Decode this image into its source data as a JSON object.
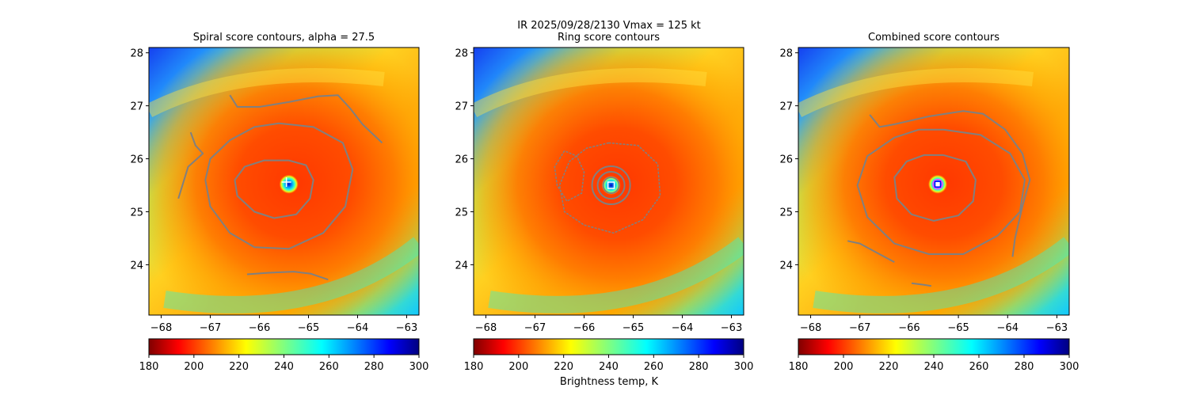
{
  "figure": {
    "suptitle_line1": "IR  2025/09/28/2130    Vmax = 125 kt",
    "colorbar_label": "Brightness temp, K"
  },
  "chart_data": [
    {
      "type": "heatmap",
      "title": "Spiral score contours, alpha = 27.5",
      "xlim": [
        -68.25,
        -62.75
      ],
      "ylim": [
        23.05,
        28.1
      ],
      "xticks": [
        -68,
        -67,
        -66,
        -65,
        -64,
        -63
      ],
      "yticks": [
        24,
        25,
        26,
        27,
        28
      ],
      "xtick_labels": [
        "−68",
        "−67",
        "−66",
        "−65",
        "−64",
        "−63"
      ],
      "ytick_labels": [
        "24",
        "25",
        "26",
        "27",
        "28"
      ],
      "colorbar": {
        "min": 180,
        "max": 300,
        "ticks": [
          "180",
          "200",
          "220",
          "240",
          "260",
          "280",
          "300"
        ],
        "colormap": "jet_r"
      },
      "center": {
        "lon": -65.4,
        "lat": 25.52
      },
      "marker": {
        "shape": "plus",
        "color": "#ffffff",
        "lon": -65.45,
        "lat": 25.56
      },
      "contours": [
        {
          "level": "inner",
          "points": [
            [
              -65.4,
              25.97
            ],
            [
              -65.05,
              25.88
            ],
            [
              -64.9,
              25.6
            ],
            [
              -64.97,
              25.25
            ],
            [
              -65.25,
              24.95
            ],
            [
              -65.7,
              24.88
            ],
            [
              -66.1,
              25.0
            ],
            [
              -66.45,
              25.3
            ],
            [
              -66.5,
              25.6
            ],
            [
              -66.3,
              25.85
            ],
            [
              -65.9,
              25.97
            ],
            [
              -65.4,
              25.97
            ]
          ]
        },
        {
          "level": "middle",
          "points": [
            [
              -65.6,
              26.67
            ],
            [
              -64.9,
              26.6
            ],
            [
              -64.3,
              26.3
            ],
            [
              -64.1,
              25.8
            ],
            [
              -64.25,
              25.1
            ],
            [
              -64.7,
              24.6
            ],
            [
              -65.4,
              24.3
            ],
            [
              -66.1,
              24.33
            ],
            [
              -66.6,
              24.6
            ],
            [
              -67.0,
              25.1
            ],
            [
              -67.1,
              25.6
            ],
            [
              -67.0,
              26.0
            ],
            [
              -66.6,
              26.35
            ],
            [
              -66.1,
              26.6
            ],
            [
              -65.6,
              26.67
            ]
          ]
        },
        {
          "level": "outer-arc",
          "points": [
            [
              -66.6,
              27.2
            ],
            [
              -66.45,
              26.98
            ],
            [
              -66.0,
              26.98
            ],
            [
              -65.4,
              27.07
            ],
            [
              -64.8,
              27.18
            ],
            [
              -64.4,
              27.2
            ],
            [
              -64.15,
              26.95
            ],
            [
              -63.9,
              26.65
            ],
            [
              -63.5,
              26.3
            ]
          ]
        },
        {
          "level": "west-fragment",
          "points": [
            [
              -67.4,
              26.5
            ],
            [
              -67.3,
              26.25
            ],
            [
              -67.15,
              26.1
            ],
            [
              -67.45,
              25.85
            ],
            [
              -67.55,
              25.55
            ],
            [
              -67.65,
              25.25
            ]
          ]
        },
        {
          "level": "south-fragment",
          "points": [
            [
              -66.25,
              23.82
            ],
            [
              -65.8,
              23.85
            ],
            [
              -65.3,
              23.87
            ],
            [
              -64.95,
              23.83
            ],
            [
              -64.6,
              23.72
            ]
          ]
        }
      ]
    },
    {
      "type": "heatmap",
      "title": "Ring score contours",
      "xlim": [
        -68.25,
        -62.75
      ],
      "ylim": [
        23.05,
        28.1
      ],
      "xticks": [
        -68,
        -67,
        -66,
        -65,
        -64,
        -63
      ],
      "yticks": [
        24,
        25,
        26,
        27,
        28
      ],
      "xtick_labels": [
        "−68",
        "−67",
        "−66",
        "−65",
        "−64",
        "−63"
      ],
      "ytick_labels": [
        "24",
        "25",
        "26",
        "27",
        "28"
      ],
      "colorbar": {
        "min": 180,
        "max": 300,
        "ticks": [
          "180",
          "200",
          "220",
          "240",
          "260",
          "280",
          "300"
        ],
        "colormap": "jet_r"
      },
      "center": {
        "lon": -65.45,
        "lat": 25.5
      },
      "marker": {
        "shape": "square",
        "color": "#ffffff",
        "lon": -65.45,
        "lat": 25.5
      },
      "contours": [
        {
          "level": "irregular",
          "jagged": true,
          "points": [
            [
              -65.5,
              26.3
            ],
            [
              -64.9,
              26.25
            ],
            [
              -64.5,
              25.9
            ],
            [
              -64.45,
              25.3
            ],
            [
              -64.8,
              24.85
            ],
            [
              -65.4,
              24.6
            ],
            [
              -66.0,
              24.75
            ],
            [
              -66.4,
              25.0
            ],
            [
              -66.5,
              25.5
            ],
            [
              -66.3,
              25.95
            ],
            [
              -65.95,
              26.2
            ],
            [
              -65.5,
              26.3
            ]
          ]
        },
        {
          "level": "west-lobe",
          "jagged": true,
          "points": [
            [
              -66.4,
              26.15
            ],
            [
              -66.6,
              25.85
            ],
            [
              -66.55,
              25.5
            ],
            [
              -66.35,
              25.2
            ],
            [
              -66.05,
              25.35
            ],
            [
              -66.0,
              25.75
            ],
            [
              -66.15,
              26.05
            ],
            [
              -66.4,
              26.15
            ]
          ]
        },
        {
          "level": "rings",
          "jagged": false,
          "points": []
        }
      ]
    },
    {
      "type": "heatmap",
      "title": "Combined score contours",
      "xlim": [
        -68.25,
        -62.75
      ],
      "ylim": [
        23.05,
        28.1
      ],
      "xticks": [
        -68,
        -67,
        -66,
        -65,
        -64,
        -63
      ],
      "yticks": [
        24,
        25,
        26,
        27,
        28
      ],
      "xtick_labels": [
        "−68",
        "−67",
        "−66",
        "−65",
        "−64",
        "−63"
      ],
      "ytick_labels": [
        "24",
        "25",
        "26",
        "27",
        "28"
      ],
      "colorbar": {
        "min": 180,
        "max": 300,
        "ticks": [
          "180",
          "200",
          "220",
          "240",
          "260",
          "280",
          "300"
        ],
        "colormap": "jet_r"
      },
      "center": {
        "lon": -65.42,
        "lat": 25.52
      },
      "marker": {
        "shape": "square-circle",
        "color": "#0000ff",
        "lon": -65.42,
        "lat": 25.52
      },
      "contours": [
        {
          "level": "inner",
          "points": [
            [
              -65.3,
              26.07
            ],
            [
              -64.85,
              25.95
            ],
            [
              -64.65,
              25.6
            ],
            [
              -64.7,
              25.2
            ],
            [
              -65.0,
              24.93
            ],
            [
              -65.5,
              24.83
            ],
            [
              -65.95,
              24.95
            ],
            [
              -66.25,
              25.25
            ],
            [
              -66.3,
              25.65
            ],
            [
              -66.05,
              25.95
            ],
            [
              -65.7,
              26.07
            ],
            [
              -65.3,
              26.07
            ]
          ]
        },
        {
          "level": "middle",
          "points": [
            [
              -65.3,
              26.55
            ],
            [
              -64.55,
              26.45
            ],
            [
              -63.95,
              26.1
            ],
            [
              -63.65,
              25.6
            ],
            [
              -63.75,
              25.0
            ],
            [
              -64.2,
              24.55
            ],
            [
              -64.9,
              24.2
            ],
            [
              -65.6,
              24.2
            ],
            [
              -66.3,
              24.4
            ],
            [
              -66.85,
              24.9
            ],
            [
              -67.05,
              25.5
            ],
            [
              -66.85,
              26.05
            ],
            [
              -66.3,
              26.4
            ],
            [
              -65.8,
              26.55
            ],
            [
              -65.3,
              26.55
            ]
          ]
        },
        {
          "level": "outer-arc",
          "points": [
            [
              -66.8,
              26.83
            ],
            [
              -66.6,
              26.6
            ],
            [
              -66.3,
              26.65
            ],
            [
              -65.6,
              26.8
            ],
            [
              -64.9,
              26.9
            ],
            [
              -64.5,
              26.85
            ],
            [
              -64.05,
              26.55
            ],
            [
              -63.7,
              26.1
            ],
            [
              -63.55,
              25.6
            ],
            [
              -63.7,
              25.1
            ],
            [
              -63.85,
              24.5
            ],
            [
              -63.9,
              24.15
            ]
          ]
        },
        {
          "level": "sw-fragment",
          "points": [
            [
              -67.25,
              24.45
            ],
            [
              -67.0,
              24.4
            ],
            [
              -66.7,
              24.25
            ],
            [
              -66.3,
              24.05
            ]
          ]
        },
        {
          "level": "south-fragment",
          "points": [
            [
              -65.95,
              23.65
            ],
            [
              -65.7,
              23.62
            ],
            [
              -65.55,
              23.6
            ]
          ]
        }
      ]
    }
  ]
}
